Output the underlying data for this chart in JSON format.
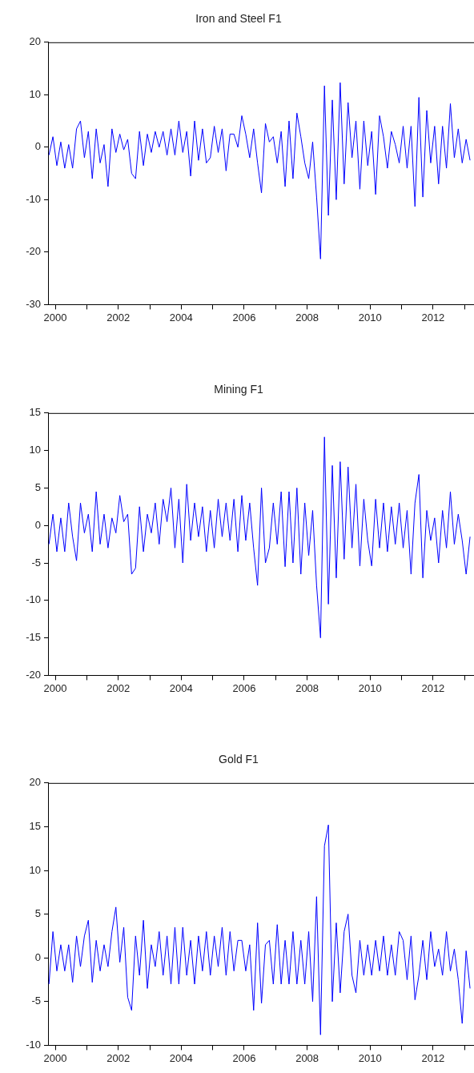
{
  "chart_data": [
    {
      "type": "line",
      "title": "Iron and Steel F1",
      "xlim": [
        1999.77,
        2013.3
      ],
      "ylim": [
        -30,
        20
      ],
      "yticks": [
        -30,
        -20,
        -10,
        0,
        10,
        20
      ],
      "xticks": [
        2000,
        {
          "value": 2001,
          "label": null
        },
        2002,
        {
          "value": 2003,
          "label": null
        },
        2004,
        {
          "value": 2005,
          "label": null
        },
        2006,
        {
          "value": 2007,
          "label": null
        },
        2008,
        {
          "value": 2009,
          "label": null
        },
        2010,
        {
          "value": 2011,
          "label": null
        },
        2012,
        {
          "value": 2013,
          "label": null
        }
      ],
      "x": [
        1999.8,
        1999.925,
        2000.05,
        2000.175,
        2000.3,
        2000.425,
        2000.55,
        2000.675,
        2000.8,
        2000.925,
        2001.05,
        2001.175,
        2001.3,
        2001.425,
        2001.55,
        2001.675,
        2001.8,
        2001.925,
        2002.05,
        2002.175,
        2002.3,
        2002.425,
        2002.55,
        2002.675,
        2002.8,
        2002.925,
        2003.05,
        2003.175,
        2003.3,
        2003.425,
        2003.55,
        2003.675,
        2003.8,
        2003.925,
        2004.05,
        2004.175,
        2004.3,
        2004.425,
        2004.55,
        2004.675,
        2004.8,
        2004.925,
        2005.05,
        2005.175,
        2005.3,
        2005.425,
        2005.55,
        2005.675,
        2005.8,
        2005.925,
        2006.05,
        2006.175,
        2006.3,
        2006.425,
        2006.55,
        2006.675,
        2006.8,
        2006.925,
        2007.05,
        2007.175,
        2007.3,
        2007.425,
        2007.55,
        2007.675,
        2007.8,
        2007.925,
        2008.05,
        2008.175,
        2008.3,
        2008.425,
        2008.55,
        2008.675,
        2008.8,
        2008.925,
        2009.05,
        2009.175,
        2009.3,
        2009.425,
        2009.55,
        2009.675,
        2009.8,
        2009.925,
        2010.05,
        2010.175,
        2010.3,
        2010.425,
        2010.55,
        2010.675,
        2010.8,
        2010.925,
        2011.05,
        2011.175,
        2011.3,
        2011.425,
        2011.55,
        2011.675,
        2011.8,
        2011.925,
        2012.05,
        2012.175,
        2012.3,
        2012.425,
        2012.55,
        2012.675,
        2012.8,
        2012.925,
        2013.05,
        2013.175
      ],
      "series": [
        {
          "color": "#0000ff",
          "values": [
            -1.5,
            2,
            -3.5,
            1,
            -4,
            0.5,
            -4,
            3.5,
            5,
            -2,
            3,
            -6,
            3.5,
            -3,
            0.5,
            -7.5,
            3.5,
            -1,
            2.5,
            -0.5,
            1.5,
            -5,
            -6,
            3,
            -3.5,
            2.5,
            -1,
            3,
            0,
            3,
            -1.5,
            3.5,
            -1.5,
            5,
            -1,
            3,
            -5.5,
            5,
            -2.5,
            3.5,
            -3,
            -2,
            4,
            -1,
            3.5,
            -4.5,
            2.5,
            2.5,
            0,
            6,
            2.5,
            -2,
            3.5,
            -3,
            -8.7,
            4.5,
            1,
            2,
            -3,
            3,
            -7.5,
            5,
            -6,
            6.5,
            2,
            -3,
            -6,
            1,
            -9.5,
            -21.3,
            11.7,
            -13,
            9,
            -10,
            12.3,
            -7,
            8.5,
            -2,
            5,
            -8,
            5,
            -3.5,
            3,
            -9,
            6,
            2,
            -4,
            3,
            0.5,
            -3,
            4,
            -4,
            4,
            -11.3,
            9.5,
            -9.5,
            7,
            -3,
            4,
            -7,
            4,
            -4,
            8.3,
            -2,
            3.5,
            -3,
            1.5,
            -2.5
          ]
        }
      ]
    },
    {
      "type": "line",
      "title": "Mining F1",
      "xlim": [
        1999.77,
        2013.3
      ],
      "ylim": [
        -20,
        15
      ],
      "yticks": [
        -20,
        -15,
        -10,
        -5,
        0,
        5,
        10,
        15
      ],
      "xticks": [
        2000,
        {
          "value": 2001,
          "label": null
        },
        2002,
        {
          "value": 2003,
          "label": null
        },
        2004,
        {
          "value": 2005,
          "label": null
        },
        2006,
        {
          "value": 2007,
          "label": null
        },
        2008,
        {
          "value": 2009,
          "label": null
        },
        2010,
        {
          "value": 2011,
          "label": null
        },
        2012,
        {
          "value": 2013,
          "label": null
        }
      ],
      "x": [
        1999.8,
        1999.925,
        2000.05,
        2000.175,
        2000.3,
        2000.425,
        2000.55,
        2000.675,
        2000.8,
        2000.925,
        2001.05,
        2001.175,
        2001.3,
        2001.425,
        2001.55,
        2001.675,
        2001.8,
        2001.925,
        2002.05,
        2002.175,
        2002.3,
        2002.425,
        2002.55,
        2002.675,
        2002.8,
        2002.925,
        2003.05,
        2003.175,
        2003.3,
        2003.425,
        2003.55,
        2003.675,
        2003.8,
        2003.925,
        2004.05,
        2004.175,
        2004.3,
        2004.425,
        2004.55,
        2004.675,
        2004.8,
        2004.925,
        2005.05,
        2005.175,
        2005.3,
        2005.425,
        2005.55,
        2005.675,
        2005.8,
        2005.925,
        2006.05,
        2006.175,
        2006.3,
        2006.425,
        2006.55,
        2006.675,
        2006.8,
        2006.925,
        2007.05,
        2007.175,
        2007.3,
        2007.425,
        2007.55,
        2007.675,
        2007.8,
        2007.925,
        2008.05,
        2008.175,
        2008.3,
        2008.425,
        2008.55,
        2008.675,
        2008.8,
        2008.925,
        2009.05,
        2009.175,
        2009.3,
        2009.425,
        2009.55,
        2009.675,
        2009.8,
        2009.925,
        2010.05,
        2010.175,
        2010.3,
        2010.425,
        2010.55,
        2010.675,
        2010.8,
        2010.925,
        2011.05,
        2011.175,
        2011.3,
        2011.425,
        2011.55,
        2011.675,
        2011.8,
        2011.925,
        2012.05,
        2012.175,
        2012.3,
        2012.425,
        2012.55,
        2012.675,
        2012.8,
        2012.925,
        2013.05,
        2013.175
      ],
      "series": [
        {
          "color": "#0000ff",
          "values": [
            -2.5,
            1.5,
            -3.5,
            1,
            -3.5,
            3,
            -1.5,
            -4.7,
            3,
            -1,
            1.5,
            -3.5,
            4.5,
            -2.5,
            1.5,
            -3,
            1,
            -1,
            4,
            0.5,
            1.5,
            -6.5,
            -5.7,
            2.5,
            -3.5,
            1.5,
            -1,
            3,
            -2.5,
            3.5,
            0.5,
            5,
            -3,
            3.5,
            -5,
            5.5,
            -2,
            3,
            -1.5,
            2.5,
            -3.5,
            2,
            -3,
            3.5,
            -1.5,
            3,
            -2,
            3.5,
            -3.5,
            4,
            -2,
            3,
            -3,
            -8,
            5,
            -5,
            -3,
            3,
            -2.5,
            4.5,
            -5.5,
            4.5,
            -5,
            5,
            -6.5,
            3,
            -4,
            2,
            -8,
            -15,
            11.8,
            -10.5,
            8,
            -7,
            8.5,
            -4.5,
            7.8,
            -3,
            5.5,
            -5.4,
            3.5,
            -2,
            -5.4,
            3.5,
            -3,
            3,
            -3.5,
            2.5,
            -2.5,
            3,
            -3,
            2,
            -6.5,
            3,
            6.8,
            -7,
            2,
            -2,
            1,
            -5,
            2,
            -3,
            4.5,
            -2.5,
            1.5,
            -2,
            -6.5,
            -1.5
          ]
        }
      ]
    },
    {
      "type": "line",
      "title": "Gold F1",
      "xlim": [
        1999.77,
        2013.3
      ],
      "ylim": [
        -10,
        20
      ],
      "yticks": [
        -10,
        -5,
        0,
        5,
        10,
        15,
        20
      ],
      "xticks": [
        2000,
        {
          "value": 2001,
          "label": null
        },
        2002,
        {
          "value": 2003,
          "label": null
        },
        2004,
        {
          "value": 2005,
          "label": null
        },
        2006,
        {
          "value": 2007,
          "label": null
        },
        2008,
        {
          "value": 2009,
          "label": null
        },
        2010,
        {
          "value": 2011,
          "label": null
        },
        2012,
        {
          "value": 2013,
          "label": null
        }
      ],
      "x": [
        1999.8,
        1999.925,
        2000.05,
        2000.175,
        2000.3,
        2000.425,
        2000.55,
        2000.675,
        2000.8,
        2000.925,
        2001.05,
        2001.175,
        2001.3,
        2001.425,
        2001.55,
        2001.675,
        2001.8,
        2001.925,
        2002.05,
        2002.175,
        2002.3,
        2002.425,
        2002.55,
        2002.675,
        2002.8,
        2002.925,
        2003.05,
        2003.175,
        2003.3,
        2003.425,
        2003.55,
        2003.675,
        2003.8,
        2003.925,
        2004.05,
        2004.175,
        2004.3,
        2004.425,
        2004.55,
        2004.675,
        2004.8,
        2004.925,
        2005.05,
        2005.175,
        2005.3,
        2005.425,
        2005.55,
        2005.675,
        2005.8,
        2005.925,
        2006.05,
        2006.175,
        2006.3,
        2006.425,
        2006.55,
        2006.675,
        2006.8,
        2006.925,
        2007.05,
        2007.175,
        2007.3,
        2007.425,
        2007.55,
        2007.675,
        2007.8,
        2007.925,
        2008.05,
        2008.175,
        2008.3,
        2008.425,
        2008.55,
        2008.675,
        2008.8,
        2008.925,
        2009.05,
        2009.175,
        2009.3,
        2009.425,
        2009.55,
        2009.675,
        2009.8,
        2009.925,
        2010.05,
        2010.175,
        2010.3,
        2010.425,
        2010.55,
        2010.675,
        2010.8,
        2010.925,
        2011.05,
        2011.175,
        2011.3,
        2011.425,
        2011.55,
        2011.675,
        2011.8,
        2011.925,
        2012.05,
        2012.175,
        2012.3,
        2012.425,
        2012.55,
        2012.675,
        2012.8,
        2012.925,
        2013.05,
        2013.175
      ],
      "series": [
        {
          "color": "#0000ff",
          "values": [
            -3,
            3,
            -1.5,
            1.5,
            -1.5,
            1.5,
            -2.8,
            2.5,
            -1,
            2.5,
            4.3,
            -2.8,
            2,
            -1.5,
            1.5,
            -1,
            3,
            5.8,
            -0.5,
            3.5,
            -4.5,
            -6,
            2.5,
            -2,
            4.3,
            -3.5,
            1.5,
            -1,
            3,
            -2,
            2.5,
            -3,
            3.5,
            -3,
            3.5,
            -2,
            2,
            -3,
            2.5,
            -1.5,
            3,
            -2,
            2.5,
            -1,
            3.5,
            -2,
            3,
            -1.5,
            2,
            2,
            -1.5,
            1.5,
            -6,
            4,
            -5.2,
            1.5,
            2,
            -3,
            3.8,
            -3,
            2,
            -3,
            3,
            -3,
            2,
            -3,
            3,
            -5,
            7,
            -8.8,
            12.8,
            15.2,
            -5,
            4,
            -4,
            3,
            5,
            -2,
            -4,
            2,
            -2,
            1.5,
            -2,
            2,
            -1.5,
            2.5,
            -2,
            1.5,
            -2,
            3,
            2,
            -2.5,
            2.5,
            -4.8,
            -2,
            2,
            -2.5,
            3,
            -1,
            1,
            -2,
            3,
            -1.5,
            1,
            -2.5,
            -7.5,
            0.8,
            -3.5
          ]
        }
      ]
    }
  ]
}
